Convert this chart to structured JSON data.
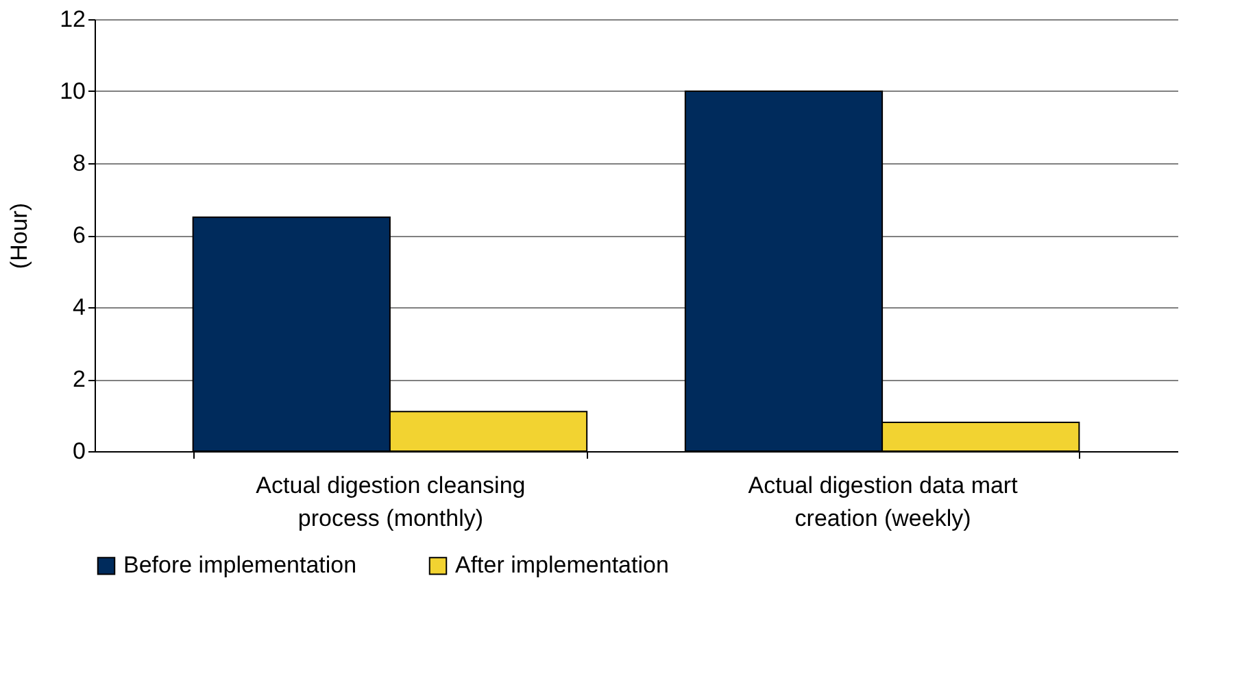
{
  "chart_data": {
    "type": "bar",
    "ylabel": "(Hour)",
    "categories": [
      "Actual digestion cleansing\nprocess (monthly)",
      "Actual digestion data mart\ncreation (weekly)"
    ],
    "series": [
      {
        "name": "Before implementation",
        "color": "#002b5c",
        "values": [
          6.5,
          10
        ]
      },
      {
        "name": "After implementation",
        "color": "#f2d331",
        "values": [
          1.1,
          0.8
        ]
      }
    ],
    "ylim": [
      0,
      12
    ],
    "yticks": [
      0,
      2,
      4,
      6,
      8,
      10,
      12
    ],
    "grid": "y",
    "legend": "bottom"
  }
}
